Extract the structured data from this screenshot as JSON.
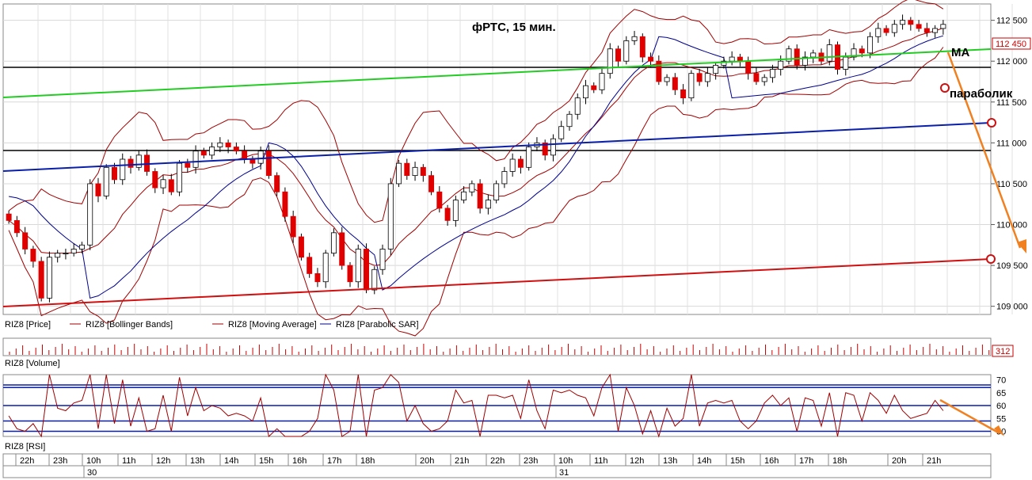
{
  "title": "фРТС, 15 мин.",
  "price_box": "112 450",
  "volume_box": "312",
  "annotations": {
    "ma": "MA",
    "parabolic": "параболик"
  },
  "legend_price": [
    {
      "name": "RIZ8 [Price]",
      "color": "#000000"
    },
    {
      "name": "RIZ8 [Bollinger Bands]",
      "color": "#a00000"
    },
    {
      "name": "RIZ8 [Moving Average]",
      "color": "#a00000"
    },
    {
      "name": "RIZ8 [Parabolic SAR]",
      "color": "#00008b"
    }
  ],
  "legend_volume": "RIZ8 [Volume]",
  "legend_rsi": "RIZ8 [RSI]",
  "time_labels": [
    "22h",
    "23h",
    "10h",
    "11h",
    "12h",
    "13h",
    "14h",
    "15h",
    "16h",
    "17h",
    "18h",
    "20h",
    "21h",
    "22h",
    "23h",
    "10h",
    "11h",
    "12h",
    "13h",
    "14h",
    "15h",
    "16h",
    "17h",
    "18h",
    "20h",
    "21h"
  ],
  "date_labels": [
    "30",
    "31"
  ],
  "colors": {
    "candle_up": "#ffffff",
    "candle_down": "#e00000",
    "bollinger": "#a00000",
    "moving_average": "#a00000",
    "parabolic": "#00008b",
    "trend_green": "#22cc22",
    "trend_blue": "#0a1fa8",
    "trend_red": "#d01010",
    "forecast": "#f08020"
  },
  "chart_data": [
    {
      "type": "candlestick",
      "title": "фРТС, 15 мин.",
      "series": [
        {
          "name": "RIZ8 [Price]"
        },
        {
          "name": "RIZ8 [Bollinger Bands]"
        },
        {
          "name": "RIZ8 [Moving Average]"
        },
        {
          "name": "RIZ8 [Parabolic SAR]"
        }
      ],
      "y_ticks": [
        109000,
        109500,
        110000,
        110500,
        111000,
        111500,
        112000,
        112500
      ],
      "y_tick_labels": [
        "109 000",
        "109 500",
        "110 000",
        "110 500",
        "111 000",
        "111 500",
        "112 000",
        "112 500"
      ],
      "ylim": [
        108900,
        112700
      ],
      "last_price": 112450,
      "grid": true,
      "close": [
        110050,
        109900,
        109700,
        109550,
        109100,
        109600,
        109650,
        109650,
        109700,
        109750,
        110500,
        110350,
        110700,
        110550,
        110800,
        110700,
        110850,
        110650,
        110450,
        110550,
        110400,
        110750,
        110700,
        110900,
        110850,
        110950,
        111000,
        110950,
        110900,
        110800,
        110750,
        110900,
        110600,
        110400,
        110100,
        109850,
        109600,
        109400,
        109300,
        109650,
        109900,
        109500,
        109300,
        109700,
        109200,
        109450,
        109700,
        110500,
        110750,
        110600,
        110700,
        110600,
        110400,
        110200,
        110050,
        110300,
        110400,
        110500,
        110200,
        110300,
        110500,
        110650,
        110800,
        110700,
        110950,
        111000,
        110850,
        111050,
        111200,
        111350,
        111550,
        111700,
        111650,
        111850,
        112150,
        112000,
        112250,
        112300,
        112050,
        112000,
        111750,
        111800,
        111650,
        111550,
        111850,
        111750,
        111850,
        111950,
        112000,
        112050,
        112000,
        111850,
        111750,
        111800,
        111900,
        112000,
        112150,
        111950,
        112050,
        112100,
        112000,
        112200,
        111900,
        112050,
        112150,
        112100,
        112300,
        112400,
        112350,
        112450,
        112500,
        112450,
        112400,
        112350,
        112400,
        112450
      ],
      "rsi": {
        "ylim": [
          48,
          72
        ],
        "ticks": [
          50,
          55,
          60,
          65,
          70
        ],
        "levels": [
          50,
          54,
          60,
          67,
          68
        ]
      },
      "volume": {
        "last": 312
      }
    }
  ]
}
